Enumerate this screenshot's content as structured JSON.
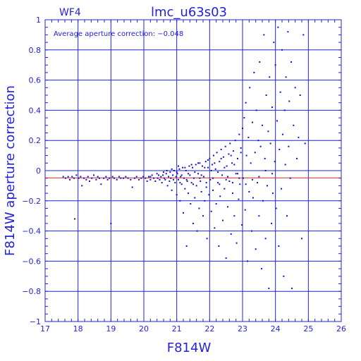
{
  "chart_data": {
    "type": "scatter",
    "title": "lmc_u63s03",
    "chip": "WF4",
    "annotation": "Average aperture correction: −0.048",
    "xlabel": "F814W",
    "ylabel": "F814W aperture correction",
    "xlim": [
      17,
      26
    ],
    "ylim": [
      -1,
      1
    ],
    "xticks": [
      "17",
      "18",
      "19",
      "20",
      "21",
      "22",
      "23",
      "24",
      "25",
      "26"
    ],
    "yticks": [
      "1",
      "0.8",
      "0.6",
      "0.4",
      "0.2",
      "0",
      "−0.2",
      "−0.4",
      "−0.6",
      "−0.8",
      "−1"
    ],
    "grid": true,
    "reference_line": {
      "y": -0.048,
      "color": "#dd2222"
    },
    "point_color": "#1111cc",
    "axis_color": "#2222dd",
    "series": [
      {
        "points": [
          [
            17.55,
            -0.04
          ],
          [
            17.62,
            -0.05
          ],
          [
            17.7,
            -0.04
          ],
          [
            17.75,
            -0.06
          ],
          [
            17.82,
            -0.04
          ],
          [
            17.88,
            -0.05
          ],
          [
            17.9,
            -0.32
          ],
          [
            17.95,
            -0.03
          ],
          [
            18.02,
            -0.05
          ],
          [
            18.08,
            -0.04
          ],
          [
            18.12,
            -0.1
          ],
          [
            18.18,
            -0.05
          ],
          [
            18.25,
            -0.06
          ],
          [
            18.3,
            -0.04
          ],
          [
            18.35,
            -0.07
          ],
          [
            18.42,
            -0.05
          ],
          [
            18.48,
            -0.03
          ],
          [
            18.55,
            -0.06
          ],
          [
            18.6,
            -0.04
          ],
          [
            18.65,
            -0.05
          ],
          [
            18.7,
            -0.09
          ],
          [
            18.78,
            -0.05
          ],
          [
            18.85,
            -0.04
          ],
          [
            18.9,
            -0.06
          ],
          [
            18.95,
            -0.05
          ],
          [
            19.0,
            -0.35
          ],
          [
            19.05,
            -0.04
          ],
          [
            19.1,
            -0.05
          ],
          [
            19.18,
            -0.06
          ],
          [
            19.25,
            -0.04
          ],
          [
            19.3,
            -0.05
          ],
          [
            19.38,
            -0.05
          ],
          [
            19.45,
            -0.04
          ],
          [
            19.52,
            -0.05
          ],
          [
            19.6,
            -0.06
          ],
          [
            19.65,
            -0.11
          ],
          [
            19.72,
            -0.05
          ],
          [
            19.78,
            -0.04
          ],
          [
            19.85,
            -0.06
          ],
          [
            19.92,
            -0.05
          ],
          [
            19.98,
            -0.04
          ],
          [
            20.05,
            -0.05
          ],
          [
            20.1,
            -0.07
          ],
          [
            20.15,
            -0.04
          ],
          [
            20.2,
            -0.06
          ],
          [
            20.25,
            -0.03
          ],
          [
            20.3,
            -0.05
          ],
          [
            20.35,
            -0.07
          ],
          [
            20.4,
            -0.02
          ],
          [
            20.42,
            -0.05
          ],
          [
            20.48,
            -0.06
          ],
          [
            20.52,
            -0.04
          ],
          [
            20.55,
            -0.08
          ],
          [
            20.58,
            -0.03
          ],
          [
            20.62,
            -0.05
          ],
          [
            20.65,
            -0.06
          ],
          [
            20.68,
            -0.02
          ],
          [
            20.72,
            -0.1
          ],
          [
            20.75,
            -0.04
          ],
          [
            20.78,
            -0.07
          ],
          [
            20.8,
            -0.01
          ],
          [
            20.82,
            -0.05
          ],
          [
            20.85,
            -0.13
          ],
          [
            20.88,
            -0.03
          ],
          [
            20.9,
            -0.06
          ],
          [
            20.92,
            0.0
          ],
          [
            20.95,
            -0.08
          ],
          [
            20.98,
            -0.04
          ],
          [
            21.0,
            -0.16
          ],
          [
            21.02,
            -0.02
          ],
          [
            21.05,
            -0.06
          ],
          [
            21.08,
            0.01
          ],
          [
            21.1,
            -0.2
          ],
          [
            21.12,
            -0.04
          ],
          [
            21.15,
            -0.09
          ],
          [
            21.18,
            0.02
          ],
          [
            21.2,
            -0.28
          ],
          [
            21.22,
            -0.05
          ],
          [
            21.25,
            -0.12
          ],
          [
            21.28,
            0.0
          ],
          [
            21.3,
            -0.5
          ],
          [
            21.32,
            -0.07
          ],
          [
            21.35,
            -0.15
          ],
          [
            21.38,
            0.03
          ],
          [
            21.4,
            -0.03
          ],
          [
            21.42,
            -0.22
          ],
          [
            21.45,
            -0.08
          ],
          [
            21.48,
            0.02
          ],
          [
            21.5,
            -0.35
          ],
          [
            21.52,
            -0.05
          ],
          [
            21.55,
            -0.18
          ],
          [
            21.58,
            0.04
          ],
          [
            21.6,
            -0.1
          ],
          [
            21.62,
            -0.4
          ],
          [
            21.65,
            -0.02
          ],
          [
            21.68,
            -0.25
          ],
          [
            21.7,
            0.05
          ],
          [
            21.72,
            -0.07
          ],
          [
            21.75,
            -0.14
          ],
          [
            21.78,
            0.03
          ],
          [
            21.8,
            -0.3
          ],
          [
            21.82,
            -0.04
          ],
          [
            21.85,
            -0.2
          ],
          [
            21.88,
            0.06
          ],
          [
            21.9,
            -0.11
          ],
          [
            21.92,
            -0.45
          ],
          [
            21.95,
            0.02
          ],
          [
            21.98,
            -0.16
          ],
          [
            22.0,
            0.08
          ],
          [
            22.02,
            -0.06
          ],
          [
            22.05,
            -0.27
          ],
          [
            22.08,
            0.04
          ],
          [
            22.1,
            -0.13
          ],
          [
            22.12,
            0.1
          ],
          [
            22.15,
            -0.38
          ],
          [
            22.18,
            0.01
          ],
          [
            22.2,
            -0.22
          ],
          [
            22.22,
            0.12
          ],
          [
            22.25,
            -0.08
          ],
          [
            22.28,
            -0.5
          ],
          [
            22.3,
            0.06
          ],
          [
            22.32,
            -0.17
          ],
          [
            22.35,
            0.14
          ],
          [
            22.38,
            -0.03
          ],
          [
            22.4,
            -0.33
          ],
          [
            22.42,
            0.09
          ],
          [
            22.45,
            -0.12
          ],
          [
            22.48,
            0.16
          ],
          [
            22.5,
            -0.58
          ],
          [
            22.52,
            0.03
          ],
          [
            22.55,
            -0.24
          ],
          [
            22.58,
            0.11
          ],
          [
            22.6,
            -0.07
          ],
          [
            22.62,
            0.18
          ],
          [
            22.65,
            -0.42
          ],
          [
            22.68,
            0.05
          ],
          [
            22.7,
            -0.15
          ],
          [
            22.72,
            0.13
          ],
          [
            22.75,
            -0.3
          ],
          [
            22.78,
            0.2
          ],
          [
            22.8,
            -0.02
          ],
          [
            22.82,
            -0.48
          ],
          [
            22.85,
            0.08
          ],
          [
            22.88,
            -0.19
          ],
          [
            22.9,
            0.24
          ],
          [
            22.92,
            -0.09
          ],
          [
            22.95,
            0.15
          ],
          [
            22.98,
            -0.36
          ],
          [
            23.0,
            0.28
          ],
          [
            23.02,
            -0.05
          ],
          [
            23.05,
            0.35
          ],
          [
            23.08,
            -0.26
          ],
          [
            23.1,
            0.45
          ],
          [
            23.12,
            0.1
          ],
          [
            23.15,
            -0.6
          ],
          [
            23.18,
            0.22
          ],
          [
            23.2,
            -0.14
          ],
          [
            23.22,
            0.55
          ],
          [
            23.25,
            0.05
          ],
          [
            23.28,
            -0.4
          ],
          [
            23.3,
            0.32
          ],
          [
            23.32,
            -0.18
          ],
          [
            23.35,
            0.65
          ],
          [
            23.38,
            0.12
          ],
          [
            23.4,
            -0.52
          ],
          [
            23.42,
            0.4
          ],
          [
            23.45,
            -0.08
          ],
          [
            23.48,
            0.2
          ],
          [
            23.5,
            -0.3
          ],
          [
            23.52,
            0.72
          ],
          [
            23.55,
            0.16
          ],
          [
            23.58,
            -0.65
          ],
          [
            23.6,
            0.3
          ],
          [
            23.62,
            -0.2
          ],
          [
            23.65,
            0.9
          ],
          [
            23.68,
            0.08
          ],
          [
            23.7,
            -0.45
          ],
          [
            23.72,
            0.5
          ],
          [
            23.75,
            -0.1
          ],
          [
            23.78,
            0.26
          ],
          [
            23.8,
            -0.78
          ],
          [
            23.82,
            0.62
          ],
          [
            23.85,
            0.18
          ],
          [
            23.88,
            -0.35
          ],
          [
            23.9,
            0.42
          ],
          [
            23.92,
            -0.15
          ],
          [
            23.95,
            0.85
          ],
          [
            23.98,
            0.06
          ],
          [
            24.0,
            0.7
          ],
          [
            24.02,
            -0.25
          ],
          [
            24.05,
            0.33
          ],
          [
            24.08,
            0.95
          ],
          [
            24.1,
            -0.5
          ],
          [
            24.12,
            0.14
          ],
          [
            24.15,
            0.52
          ],
          [
            24.18,
            -0.12
          ],
          [
            24.2,
            0.8
          ],
          [
            24.22,
            0.24
          ],
          [
            24.25,
            -0.7
          ],
          [
            24.28,
            0.4
          ],
          [
            24.3,
            0.04
          ],
          [
            24.32,
            0.62
          ],
          [
            24.35,
            -0.3
          ],
          [
            24.38,
            0.92
          ],
          [
            24.4,
            0.16
          ],
          [
            24.42,
            0.46
          ],
          [
            24.45,
            -0.05
          ],
          [
            24.48,
            0.72
          ],
          [
            24.5,
            -0.78
          ],
          [
            24.55,
            0.3
          ],
          [
            24.6,
            0.55
          ],
          [
            24.65,
            0.08
          ],
          [
            24.7,
            0.22
          ],
          [
            24.75,
            0.5
          ],
          [
            24.8,
            -0.45
          ],
          [
            24.85,
            0.9
          ],
          [
            24.9,
            0.18
          ],
          [
            20.2,
            -0.04
          ],
          [
            20.45,
            -0.03
          ],
          [
            20.6,
            -0.01
          ],
          [
            20.7,
            0.0
          ],
          [
            20.85,
            0.01
          ],
          [
            21.0,
            -0.01
          ],
          [
            21.05,
            0.03
          ],
          [
            21.15,
            -0.03
          ],
          [
            21.25,
            0.02
          ],
          [
            21.35,
            -0.02
          ],
          [
            21.45,
            0.04
          ],
          [
            21.55,
            -0.01
          ],
          [
            21.65,
            0.05
          ],
          [
            21.75,
            -0.03
          ],
          [
            21.85,
            0.02
          ],
          [
            21.95,
            0.07
          ],
          [
            22.05,
            0.0
          ],
          [
            22.15,
            0.05
          ],
          [
            22.25,
            -0.01
          ],
          [
            22.35,
            0.08
          ],
          [
            22.45,
            0.02
          ],
          [
            22.55,
            -0.04
          ],
          [
            22.65,
            0.1
          ],
          [
            22.75,
            0.04
          ],
          [
            22.85,
            -0.02
          ],
          [
            22.95,
            0.12
          ],
          [
            21.1,
            -0.08
          ],
          [
            21.3,
            -0.06
          ],
          [
            21.5,
            -0.09
          ],
          [
            21.7,
            -0.05
          ],
          [
            21.9,
            -0.08
          ],
          [
            22.1,
            -0.05
          ],
          [
            22.3,
            -0.09
          ],
          [
            22.5,
            -0.06
          ],
          [
            22.7,
            -0.08
          ],
          [
            22.9,
            -0.05
          ],
          [
            23.1,
            -0.09
          ],
          [
            23.3,
            -0.06
          ],
          [
            23.5,
            -0.04
          ],
          [
            23.7,
            0.0
          ],
          [
            23.9,
            -0.02
          ]
        ]
      }
    ]
  }
}
